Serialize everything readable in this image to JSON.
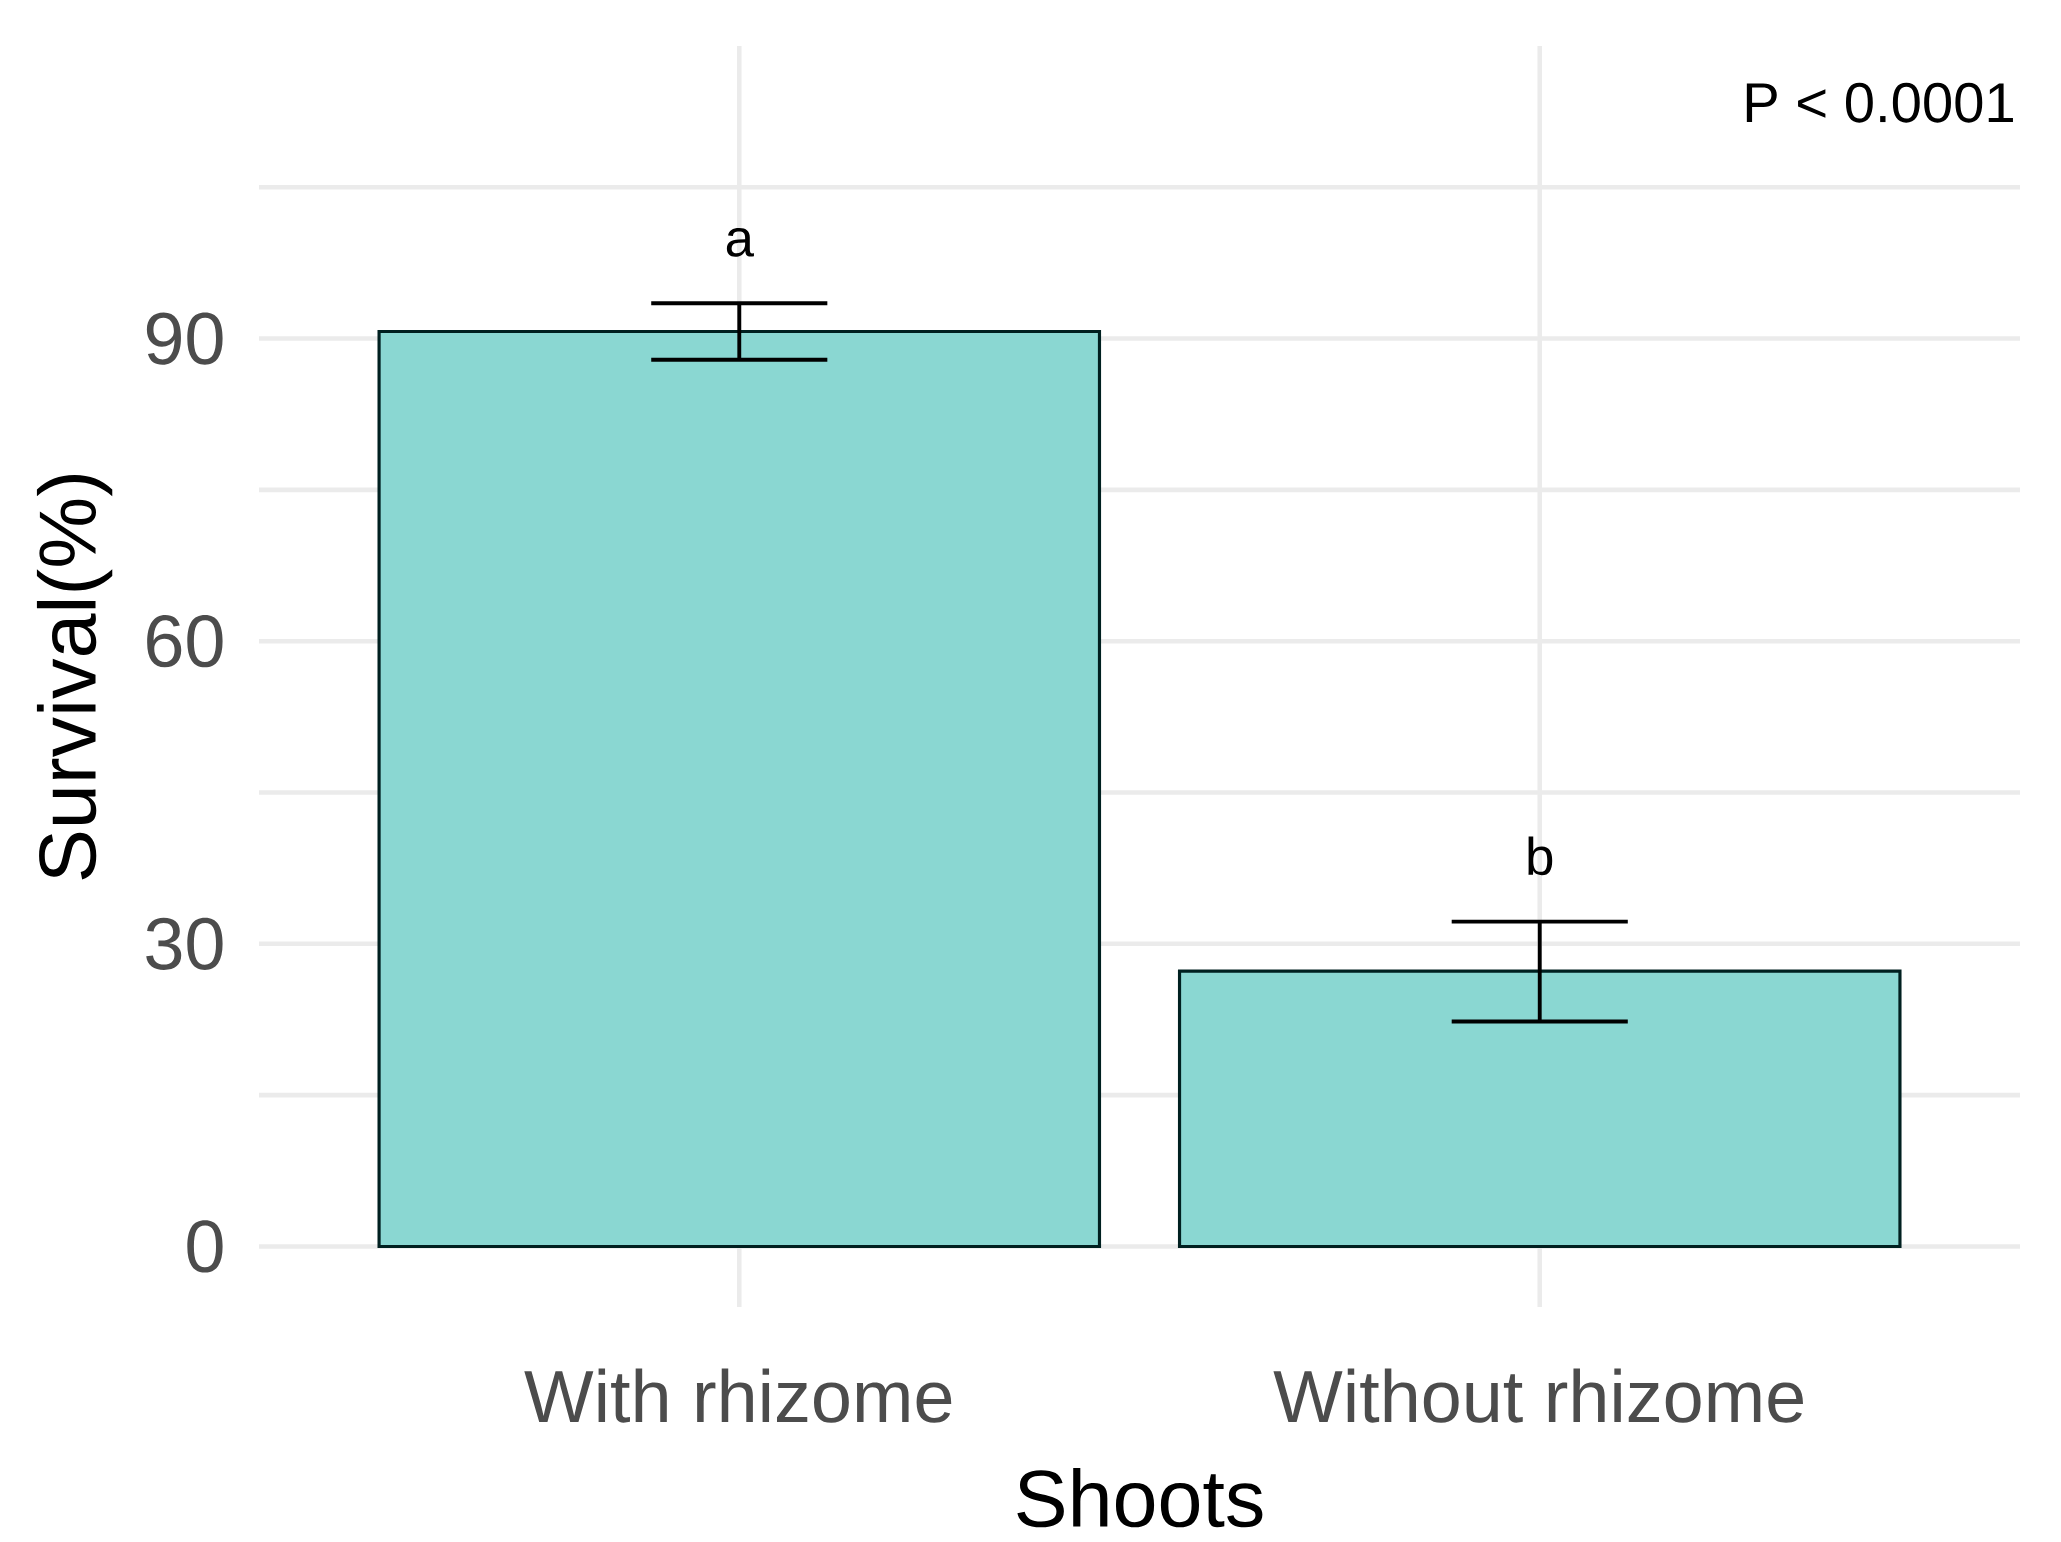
{
  "chart_data": {
    "type": "bar",
    "categories": [
      "With rhizome",
      "Without rhizome"
    ],
    "values": [
      90.7,
      27.3
    ],
    "errors": [
      [
        87.9,
        93.5
      ],
      [
        22.3,
        32.2
      ]
    ],
    "color": "#8ad7d2",
    "xlabel": "Shoots",
    "ylabel": "Survival(%)",
    "ylim": [
      -6,
      119
    ],
    "yticks": [
      0,
      {
        "value": 15,
        "label": null
      },
      30,
      {
        "value": 45,
        "label": null
      },
      60,
      {
        "value": 75,
        "label": null
      },
      90,
      {
        "value": 105,
        "label": null
      }
    ],
    "grid": true,
    "annotations": [
      "a",
      "b",
      "P < 0.0001"
    ]
  }
}
